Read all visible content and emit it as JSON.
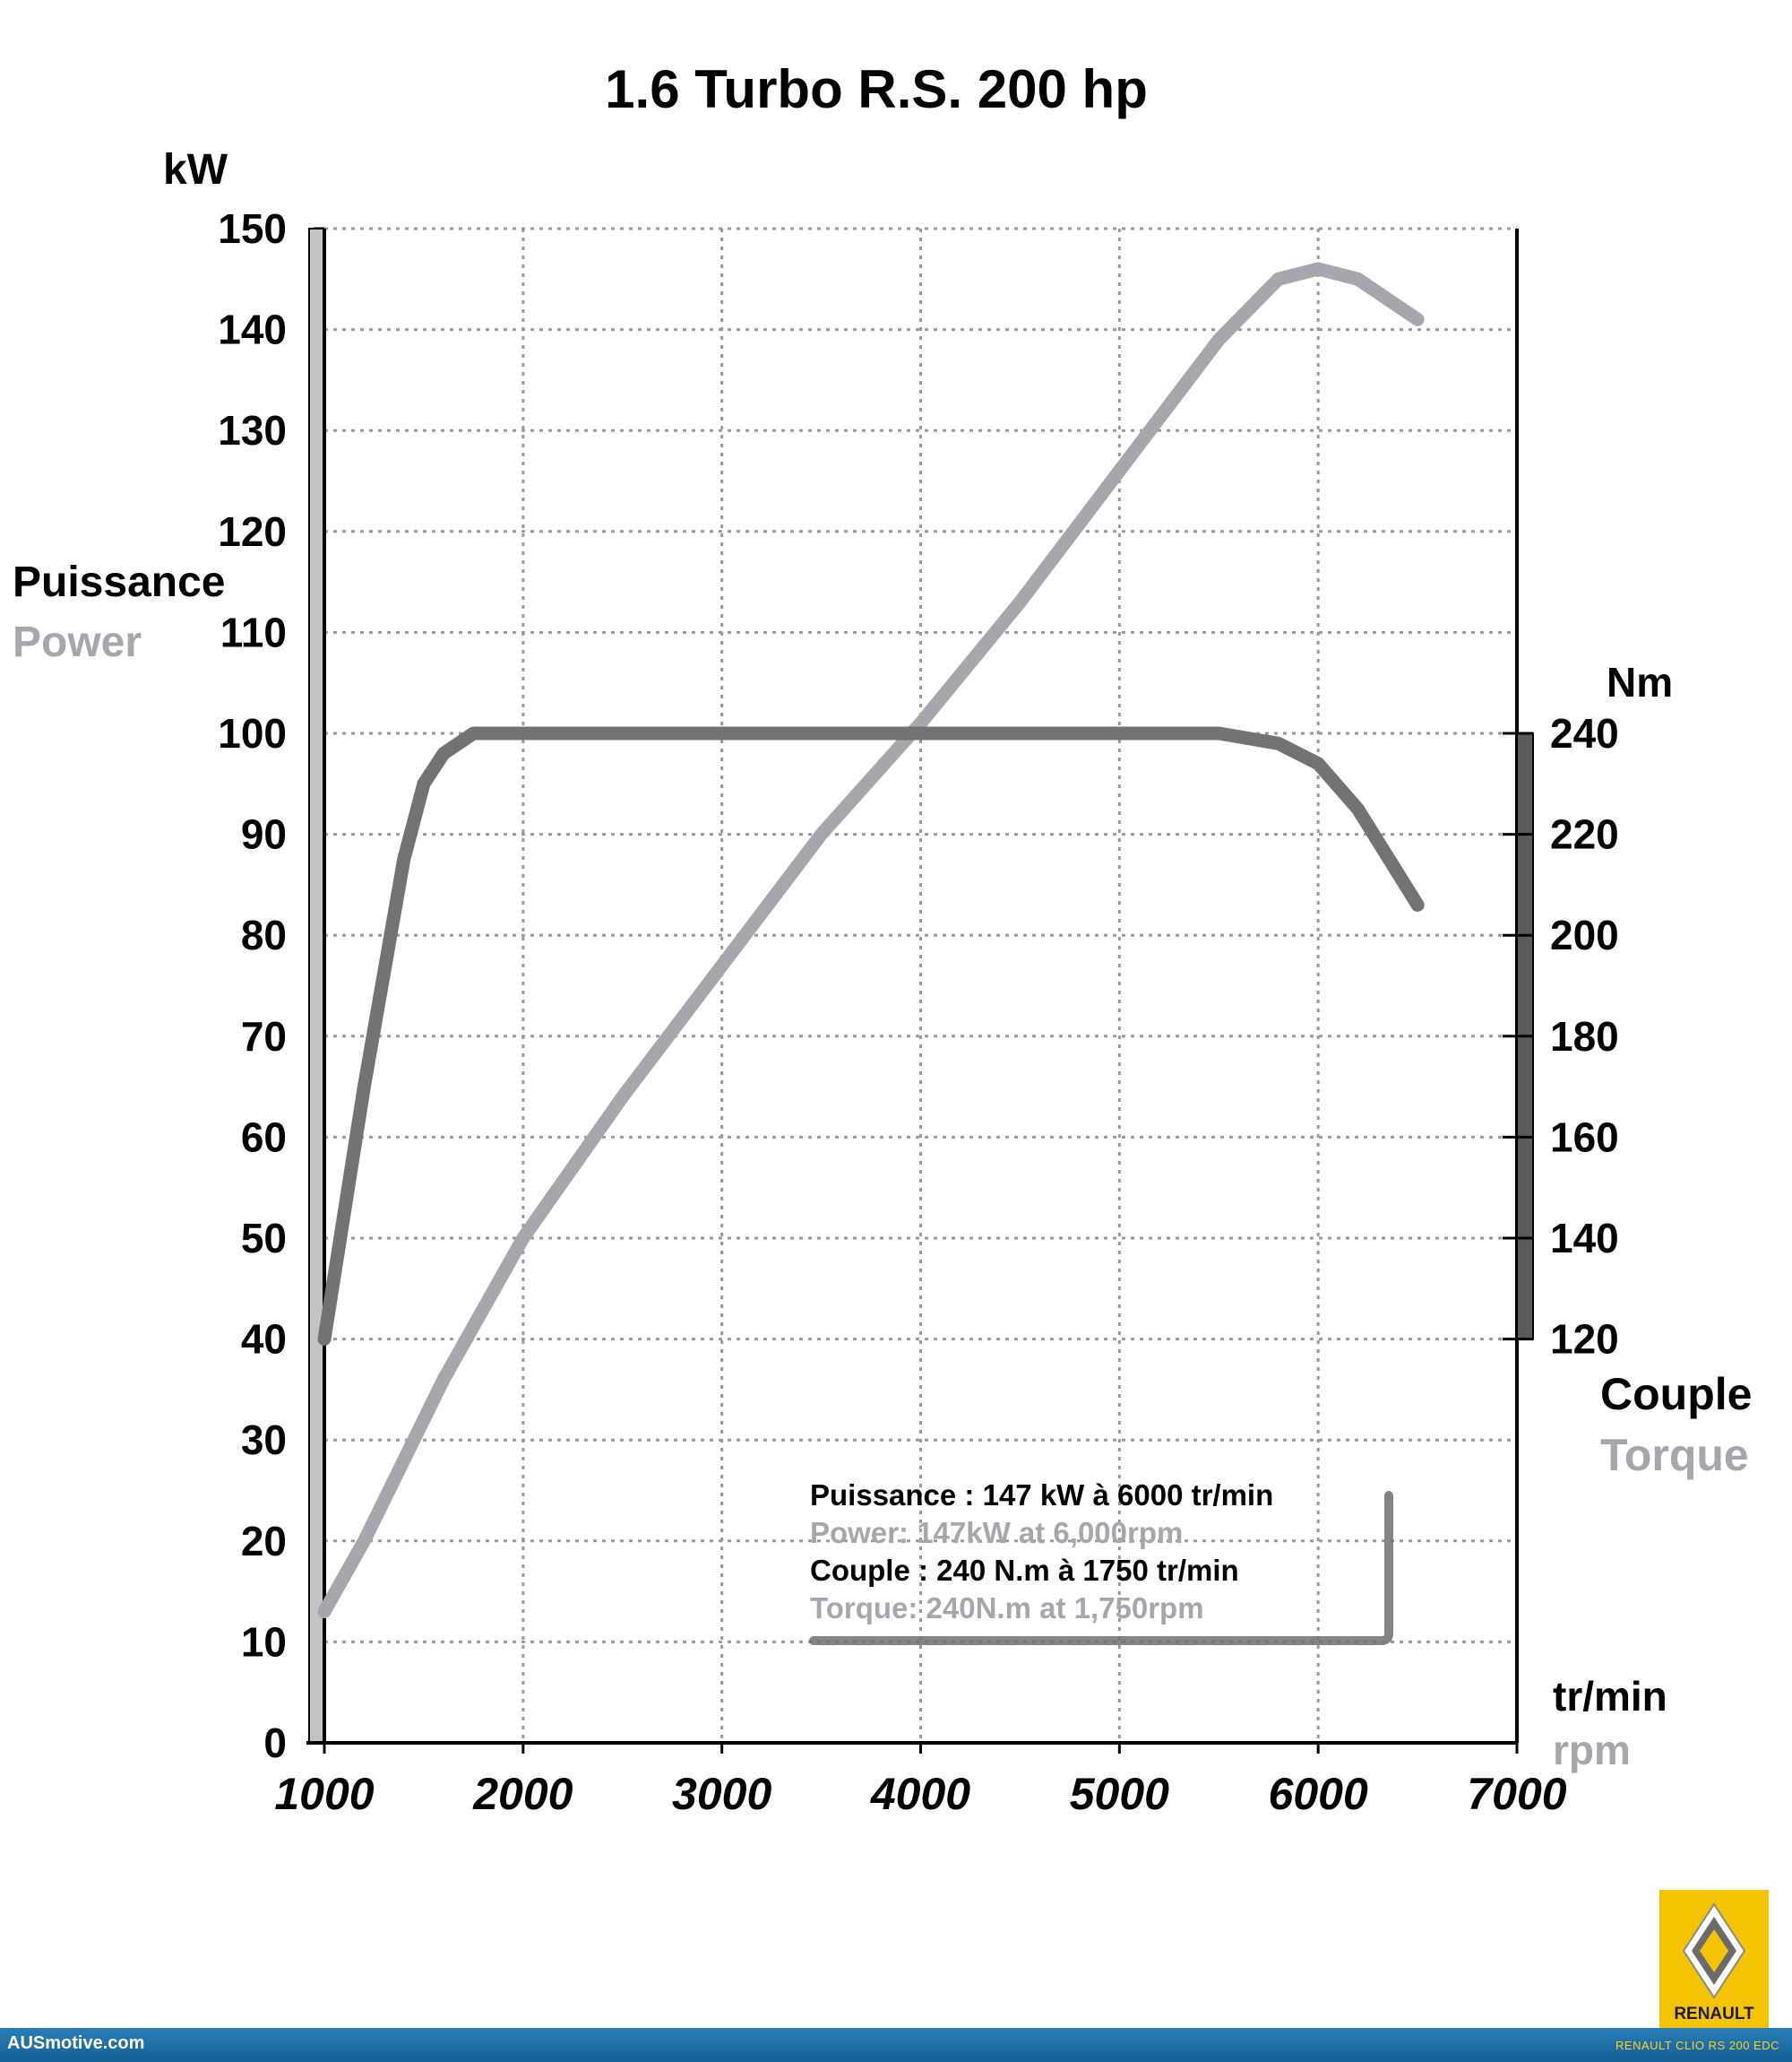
{
  "chart_data": {
    "type": "line",
    "title": "1.6 Turbo R.S. 200 hp",
    "xlabel": "tr/min",
    "xlabel_en": "rpm",
    "ylabel_left_unit": "kW",
    "ylabel_left": "Puissance",
    "ylabel_left_en": "Power",
    "ylabel_right_unit": "Nm",
    "ylabel_right": "Couple",
    "ylabel_right_en": "Torque",
    "xlim": [
      1000,
      7000
    ],
    "xticks": [
      "1000",
      "2000",
      "3000",
      "4000",
      "5000",
      "6000",
      "7000"
    ],
    "ylim_left": [
      0,
      150
    ],
    "yticks_left": [
      "0",
      "10",
      "20",
      "30",
      "40",
      "50",
      "60",
      "70",
      "80",
      "90",
      "100",
      "110",
      "120",
      "130",
      "140",
      "150"
    ],
    "ylim_right": [
      120,
      240
    ],
    "yticks_right": [
      "120",
      "140",
      "160",
      "180",
      "200",
      "220",
      "240"
    ],
    "grid": true,
    "series": [
      {
        "name": "Power",
        "axis": "left",
        "color": "#a6a6ad",
        "x": [
          1000,
          1200,
          1500,
          1600,
          2000,
          2500,
          3000,
          3500,
          4000,
          4500,
          5000,
          5500,
          5800,
          6000,
          6200,
          6500
        ],
        "values": [
          13,
          20,
          32,
          36,
          50,
          64,
          77,
          90,
          101,
          113,
          126,
          139,
          145,
          146,
          145,
          141
        ]
      },
      {
        "name": "Torque",
        "axis": "right",
        "color": "#737373",
        "x": [
          1000,
          1200,
          1400,
          1500,
          1600,
          1750,
          2000,
          3000,
          4000,
          5000,
          5500,
          5800,
          6000,
          6200,
          6500
        ],
        "values": [
          120,
          170,
          215,
          230,
          236,
          240,
          240,
          240,
          240,
          240,
          240,
          238,
          234,
          225,
          206
        ]
      }
    ],
    "annotations": [
      "Puissance : 147 kW à 6000 tr/min",
      "Power: 147kW at 6,000rpm",
      "Couple : 240 N.m à 1750 tr/min",
      "Torque: 240N.m at 1,750rpm"
    ]
  },
  "logo": {
    "text": "RENAULT",
    "color": "#f5c400"
  },
  "footer": {
    "site": "AUSmotive.com",
    "caption": "RENAULT CLIO RS 200 EDC"
  }
}
